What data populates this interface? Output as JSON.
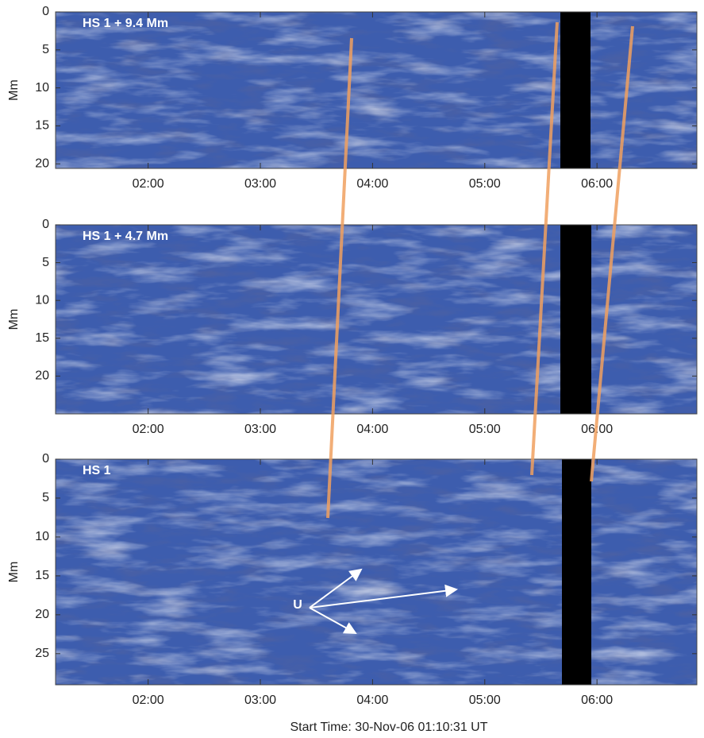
{
  "figure": {
    "footer": "Start Time: 30-Nov-06 01:10:31 UT",
    "annotation": "U",
    "panels": [
      {
        "label": "HS 1 + 9.4 Mm",
        "ylabel": "Mm",
        "ylim": [
          0,
          20.6
        ],
        "yticks": [
          0,
          5,
          10,
          15,
          20
        ],
        "xlim": [
          1.175,
          6.89
        ],
        "xticks": [
          {
            "value": 2,
            "label": "02:00"
          },
          {
            "value": 3,
            "label": "03:00"
          },
          {
            "value": 4,
            "label": "04:00"
          },
          {
            "value": 5,
            "label": "05:00"
          },
          {
            "value": 6,
            "label": "06:00"
          }
        ]
      },
      {
        "label": "HS 1 + 4.7 Mm",
        "ylabel": "Mm",
        "ylim": [
          0,
          25
        ],
        "yticks": [
          0,
          5,
          10,
          15,
          20
        ],
        "xlim": [
          1.175,
          6.89
        ],
        "xticks": [
          {
            "value": 2,
            "label": "02:00"
          },
          {
            "value": 3,
            "label": "03:00"
          },
          {
            "value": 4,
            "label": "04:00"
          },
          {
            "value": 5,
            "label": "05:00"
          },
          {
            "value": 6,
            "label": "06:00"
          }
        ]
      },
      {
        "label": "HS 1",
        "ylabel": "Mm",
        "ylim": [
          0,
          29
        ],
        "yticks": [
          0,
          5,
          10,
          15,
          20,
          25
        ],
        "xlim": [
          1.175,
          6.89
        ],
        "xticks": [
          {
            "value": 2,
            "label": "02:00"
          },
          {
            "value": 3,
            "label": "03:00"
          },
          {
            "value": 4,
            "label": "04:00"
          },
          {
            "value": 5,
            "label": "05:00"
          },
          {
            "value": 6,
            "label": "06:00"
          }
        ]
      }
    ]
  }
}
